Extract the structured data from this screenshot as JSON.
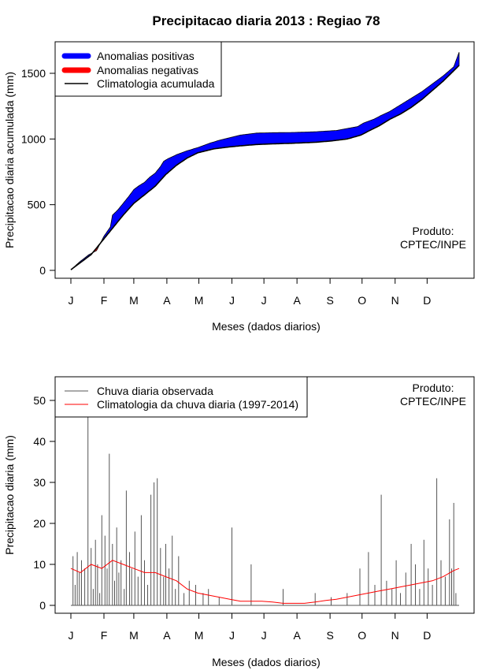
{
  "colors": {
    "positive": "#0000ff",
    "negative": "#ff0000",
    "observed": "#555555",
    "clim_daily": "#ff0000",
    "clim_cum": "#000000"
  },
  "title": "Precipitacao diaria 2013 : Regiao 78",
  "watermark": [
    "Produto:",
    "CPTEC/INPE"
  ],
  "month_labels": [
    "J",
    "F",
    "M",
    "A",
    "M",
    "J",
    "J",
    "A",
    "S",
    "O",
    "N",
    "D"
  ],
  "chart_data": [
    {
      "type": "area",
      "title": "Precipitacao diaria 2013 : Regiao 78",
      "xlabel": "Meses (dados diarios)",
      "ylabel": "Precipitacao diaria acumulada (mm)",
      "xlim": [
        1,
        365
      ],
      "ylim": [
        0,
        1600
      ],
      "yticks": [
        0,
        500,
        1000,
        1500
      ],
      "legend_position": "top-left",
      "legend": [
        "Anomalias positivas",
        "Anomalias negativas",
        "Climatologia acumulada"
      ],
      "climatology_days": [
        1,
        20,
        32,
        50,
        60,
        80,
        90,
        100,
        110,
        120,
        135,
        150,
        160,
        175,
        190,
        210,
        230,
        245,
        260,
        273,
        280,
        290,
        300,
        310,
        320,
        330,
        340,
        350,
        365
      ],
      "climatology_cum": [
        5,
        120,
        240,
        420,
        510,
        640,
        730,
        800,
        855,
        895,
        925,
        940,
        948,
        958,
        963,
        968,
        975,
        985,
        1000,
        1030,
        1060,
        1100,
        1150,
        1190,
        1240,
        1300,
        1370,
        1440,
        1560
      ],
      "observed_days": [
        1,
        10,
        18,
        25,
        32,
        38,
        40,
        45,
        55,
        60,
        65,
        70,
        75,
        80,
        85,
        88,
        92,
        100,
        110,
        120,
        130,
        140,
        150,
        160,
        175,
        190,
        210,
        230,
        250,
        260,
        270,
        275,
        285,
        292,
        300,
        310,
        320,
        330,
        340,
        350,
        360,
        365
      ],
      "observed_cum": [
        5,
        70,
        120,
        150,
        260,
        330,
        420,
        460,
        560,
        615,
        645,
        670,
        710,
        740,
        790,
        830,
        850,
        880,
        910,
        935,
        965,
        990,
        1010,
        1030,
        1045,
        1048,
        1050,
        1055,
        1065,
        1080,
        1095,
        1120,
        1150,
        1180,
        1210,
        1260,
        1310,
        1360,
        1420,
        1480,
        1550,
        1660
      ]
    },
    {
      "type": "line",
      "xlabel": "Meses (dados diarios)",
      "ylabel": "Precipitacao diaria (mm)",
      "xlim": [
        1,
        365
      ],
      "ylim": [
        0,
        50
      ],
      "yticks": [
        0,
        10,
        20,
        30,
        40,
        50
      ],
      "legend_position": "top-left",
      "legend": [
        "Chuva diaria observada",
        "Climatologia da chuva diaria (1997-2014)"
      ],
      "clim_days": [
        1,
        10,
        20,
        30,
        40,
        50,
        60,
        70,
        80,
        90,
        100,
        110,
        120,
        130,
        140,
        150,
        160,
        170,
        180,
        190,
        200,
        210,
        220,
        230,
        240,
        250,
        260,
        270,
        280,
        290,
        300,
        310,
        320,
        330,
        340,
        350,
        360,
        365
      ],
      "clim_values": [
        9,
        8,
        10,
        9,
        11,
        10,
        9,
        8,
        8,
        7,
        6,
        4,
        3,
        2.5,
        2,
        1.5,
        1,
        1,
        1,
        0.8,
        0.5,
        0.5,
        0.5,
        0.8,
        1.2,
        1.5,
        2,
        2.5,
        3,
        3.5,
        4,
        4.5,
        5,
        5.5,
        6,
        7,
        8.5,
        9
      ],
      "observed_days": [
        3,
        5,
        7,
        9,
        11,
        14,
        17,
        20,
        22,
        24,
        26,
        28,
        30,
        33,
        35,
        37,
        40,
        42,
        44,
        46,
        48,
        51,
        53,
        56,
        58,
        61,
        64,
        67,
        70,
        73,
        76,
        79,
        82,
        85,
        88,
        90,
        93,
        96,
        99,
        102,
        107,
        112,
        118,
        125,
        130,
        140,
        152,
        170,
        200,
        230,
        245,
        260,
        272,
        280,
        286,
        292,
        297,
        302,
        306,
        310,
        315,
        320,
        324,
        328,
        332,
        336,
        340,
        344,
        348,
        352,
        356,
        358,
        360,
        362
      ],
      "observed_values": [
        12,
        5,
        13,
        8,
        11,
        9,
        46,
        14,
        4,
        16,
        10,
        3,
        22,
        17,
        9,
        37,
        15,
        6,
        19,
        8,
        11,
        4,
        28,
        13,
        9,
        18,
        7,
        22,
        11,
        5,
        27,
        30,
        31,
        14,
        7,
        15,
        9,
        17,
        4,
        12,
        3,
        6,
        5,
        3,
        4,
        2,
        19,
        10,
        4,
        3,
        2,
        3,
        9,
        13,
        5,
        27,
        6,
        4,
        11,
        3,
        8,
        15,
        10,
        4,
        16,
        9,
        5,
        31,
        11,
        7,
        21,
        9,
        25,
        3
      ]
    }
  ]
}
